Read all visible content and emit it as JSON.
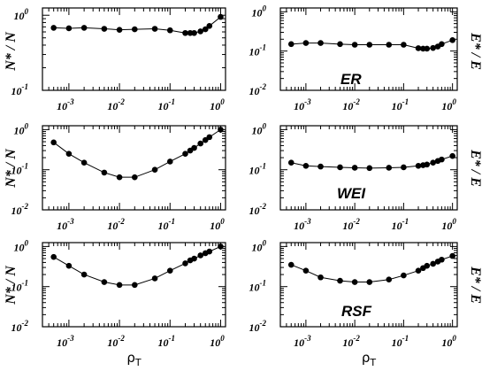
{
  "chart_data": [
    {
      "type": "line",
      "panel": "left-1",
      "ylabel": "N* / N",
      "xlabel": "",
      "xscale": "log",
      "yscale": "log",
      "xlim": [
        0.0003,
        1.25
      ],
      "ylim": [
        0.1,
        1.25
      ],
      "x_ticks": [
        "10",
        "10",
        "10",
        "10"
      ],
      "x_tick_exps": [
        "-3",
        "-2",
        "-1",
        "0"
      ],
      "y_ticks": [
        "10",
        "10"
      ],
      "y_tick_exps": [
        "-1",
        "0"
      ],
      "series": [
        {
          "x": [
            0.0005,
            0.001,
            0.002,
            0.005,
            0.01,
            0.02,
            0.05,
            0.1,
            0.2,
            0.25,
            0.3,
            0.4,
            0.5,
            0.6,
            1.0
          ],
          "y": [
            0.68,
            0.67,
            0.68,
            0.66,
            0.64,
            0.65,
            0.66,
            0.63,
            0.58,
            0.58,
            0.58,
            0.61,
            0.65,
            0.72,
            0.95
          ]
        }
      ]
    },
    {
      "type": "line",
      "panel": "right-1",
      "ylabel": "E* / E",
      "label": "ER",
      "xscale": "log",
      "yscale": "log",
      "xlim": [
        0.0003,
        1.25
      ],
      "ylim": [
        0.01,
        1.25
      ],
      "x_ticks": [
        "10",
        "10",
        "10",
        "10"
      ],
      "x_tick_exps": [
        "-3",
        "-2",
        "-1",
        "0"
      ],
      "y_ticks": [
        "10",
        "10",
        "10"
      ],
      "y_tick_exps": [
        "-2",
        "-1",
        "0"
      ],
      "series": [
        {
          "x": [
            0.0005,
            0.001,
            0.002,
            0.005,
            0.01,
            0.02,
            0.05,
            0.1,
            0.2,
            0.25,
            0.3,
            0.4,
            0.5,
            0.6,
            1.0
          ],
          "y": [
            0.15,
            0.16,
            0.16,
            0.15,
            0.145,
            0.145,
            0.145,
            0.145,
            0.118,
            0.115,
            0.115,
            0.12,
            0.13,
            0.15,
            0.19
          ]
        }
      ]
    },
    {
      "type": "line",
      "panel": "left-2",
      "ylabel": "N* / N",
      "xlabel": "",
      "xscale": "log",
      "yscale": "log",
      "xlim": [
        0.0003,
        1.25
      ],
      "ylim": [
        0.01,
        1.25
      ],
      "x_ticks": [
        "10",
        "10",
        "10",
        "10"
      ],
      "x_tick_exps": [
        "-3",
        "-2",
        "-1",
        "0"
      ],
      "y_ticks": [
        "10",
        "10",
        "10"
      ],
      "y_tick_exps": [
        "-2",
        "-1",
        "0"
      ],
      "series": [
        {
          "x": [
            0.0005,
            0.001,
            0.002,
            0.005,
            0.01,
            0.02,
            0.05,
            0.1,
            0.2,
            0.25,
            0.3,
            0.4,
            0.5,
            0.6,
            1.0
          ],
          "y": [
            0.48,
            0.25,
            0.15,
            0.085,
            0.065,
            0.065,
            0.1,
            0.16,
            0.25,
            0.3,
            0.35,
            0.45,
            0.55,
            0.65,
            1.0
          ]
        }
      ]
    },
    {
      "type": "line",
      "panel": "right-2",
      "ylabel": "E* / E",
      "label": "WEI",
      "xscale": "log",
      "yscale": "log",
      "xlim": [
        0.0003,
        1.25
      ],
      "ylim": [
        0.01,
        1.25
      ],
      "x_ticks": [
        "10",
        "10",
        "10",
        "10"
      ],
      "x_tick_exps": [
        "-3",
        "-2",
        "-1",
        "0"
      ],
      "y_ticks": [
        "10",
        "10",
        "10"
      ],
      "y_tick_exps": [
        "-2",
        "-1",
        "0"
      ],
      "series": [
        {
          "x": [
            0.0005,
            0.001,
            0.002,
            0.005,
            0.01,
            0.02,
            0.05,
            0.1,
            0.2,
            0.25,
            0.3,
            0.4,
            0.5,
            0.6,
            1.0
          ],
          "y": [
            0.15,
            0.125,
            0.12,
            0.115,
            0.112,
            0.11,
            0.112,
            0.115,
            0.125,
            0.13,
            0.135,
            0.15,
            0.165,
            0.18,
            0.22
          ]
        }
      ]
    },
    {
      "type": "line",
      "panel": "left-3",
      "ylabel": "N* / N",
      "xlabel": "ρT",
      "xscale": "log",
      "yscale": "log",
      "xlim": [
        0.0003,
        1.25
      ],
      "ylim": [
        0.01,
        1.25
      ],
      "x_ticks": [
        "10",
        "10",
        "10",
        "10"
      ],
      "x_tick_exps": [
        "-3",
        "-2",
        "-1",
        "0"
      ],
      "y_ticks": [
        "10",
        "10",
        "10"
      ],
      "y_tick_exps": [
        "-2",
        "-1",
        "0"
      ],
      "series": [
        {
          "x": [
            0.0005,
            0.001,
            0.002,
            0.005,
            0.01,
            0.02,
            0.05,
            0.1,
            0.2,
            0.25,
            0.3,
            0.4,
            0.5,
            0.6,
            1.0
          ],
          "y": [
            0.55,
            0.33,
            0.2,
            0.13,
            0.11,
            0.11,
            0.16,
            0.25,
            0.38,
            0.45,
            0.5,
            0.6,
            0.68,
            0.75,
            1.0
          ]
        }
      ]
    },
    {
      "type": "line",
      "panel": "right-3",
      "ylabel": "E* / E",
      "xlabel": "ρT",
      "label": "RSF",
      "xscale": "log",
      "yscale": "log",
      "xlim": [
        0.0003,
        1.25
      ],
      "ylim": [
        0.01,
        1.25
      ],
      "x_ticks": [
        "10",
        "10",
        "10",
        "10"
      ],
      "x_tick_exps": [
        "-3",
        "-2",
        "-1",
        "0"
      ],
      "y_ticks": [
        "10",
        "10",
        "10"
      ],
      "y_tick_exps": [
        "-2",
        "-1",
        "0"
      ],
      "series": [
        {
          "x": [
            0.0005,
            0.001,
            0.002,
            0.005,
            0.01,
            0.02,
            0.05,
            0.1,
            0.2,
            0.25,
            0.3,
            0.4,
            0.5,
            0.6,
            1.0
          ],
          "y": [
            0.35,
            0.25,
            0.17,
            0.14,
            0.13,
            0.13,
            0.15,
            0.19,
            0.25,
            0.29,
            0.33,
            0.37,
            0.42,
            0.47,
            0.58
          ]
        }
      ]
    }
  ]
}
